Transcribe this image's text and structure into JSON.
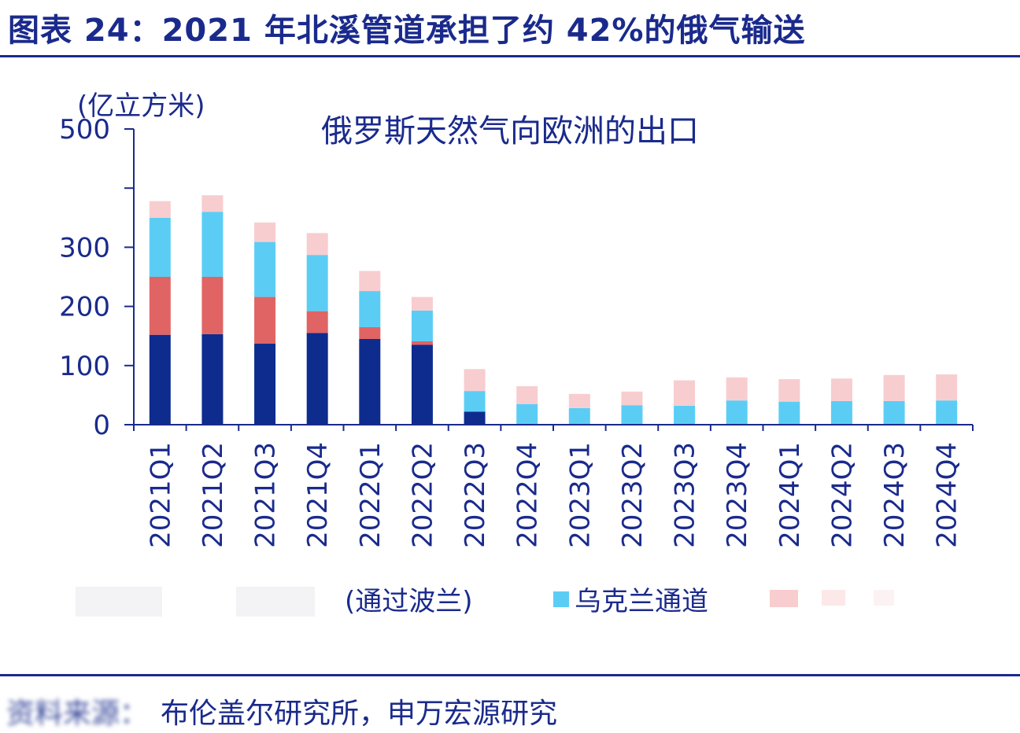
{
  "figure": {
    "title": "图表 24：2021 年北溪管道承担了约 42%的俄气输送",
    "source_prefix": "资料来源：",
    "source_text": "布伦盖尔研究所，申万宏源研究"
  },
  "colors": {
    "nord_stream": "#0e2c8e",
    "yamal_poland": "#e06464",
    "ukraine": "#5bcdf5",
    "turkstream": "#f8cdcf",
    "axis": "#1a2a8c",
    "text": "#1a2a8c"
  },
  "chart_data": {
    "type": "bar",
    "stacked": true,
    "title": "俄罗斯天然气向欧洲的出口",
    "ylabel": "(亿立方米)",
    "ylim": [
      0,
      500
    ],
    "yticks": [
      "0",
      "100",
      "200",
      "300",
      "",
      "500"
    ],
    "categories": [
      "2021Q1",
      "2021Q2",
      "2021Q3",
      "2021Q4",
      "2022Q1",
      "2022Q2",
      "2022Q3",
      "2022Q4",
      "2023Q1",
      "2023Q2",
      "2023Q3",
      "2023Q4",
      "2024Q1",
      "2024Q2",
      "2024Q3",
      "2024Q4"
    ],
    "series": [
      {
        "name": "",
        "color_key": "nord_stream",
        "values": [
          152,
          153,
          137,
          155,
          145,
          135,
          22,
          0,
          0,
          0,
          0,
          0,
          0,
          0,
          0,
          0
        ]
      },
      {
        "name": "(通过波兰)",
        "color_key": "yamal_poland",
        "values": [
          98,
          97,
          79,
          37,
          20,
          6,
          0,
          0,
          0,
          0,
          0,
          0,
          0,
          0,
          0,
          0
        ]
      },
      {
        "name": "乌克兰通道",
        "color_key": "ukraine",
        "values": [
          100,
          110,
          93,
          95,
          61,
          52,
          35,
          35,
          28,
          33,
          32,
          41,
          39,
          40,
          40,
          41
        ]
      },
      {
        "name": "",
        "color_key": "turkstream",
        "values": [
          28,
          28,
          33,
          37,
          34,
          23,
          37,
          30,
          24,
          23,
          43,
          39,
          38,
          38,
          44,
          44
        ]
      }
    ],
    "legend_position": "bottom",
    "legend_entries": [
      {
        "label": "",
        "color_key": "nord_stream",
        "obscured": true
      },
      {
        "label": "(通过波兰)",
        "color_key": "yamal_poland",
        "obscured_swatch": true
      },
      {
        "label": "乌克兰通道",
        "color_key": "ukraine"
      },
      {
        "label": "",
        "color_key": "turkstream",
        "obscured": true
      }
    ],
    "grid": false
  }
}
